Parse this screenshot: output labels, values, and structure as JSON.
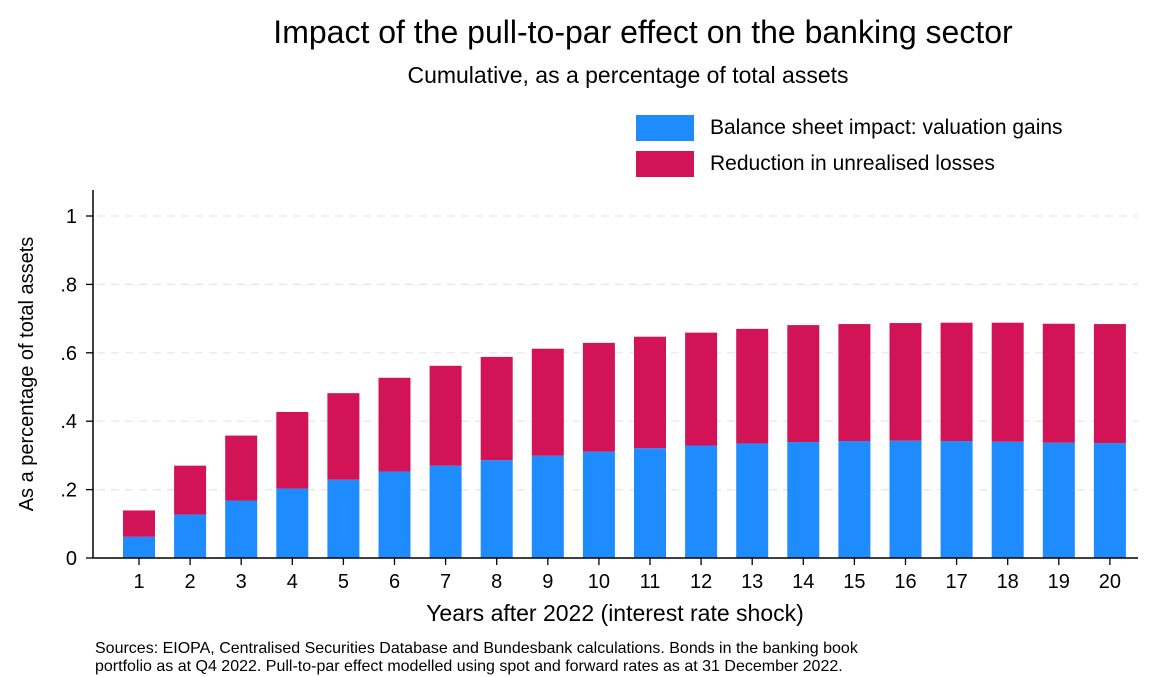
{
  "colors": {
    "valuation_gains": "#1E8CFF",
    "unrealised_losses": "#D21457",
    "gridline": "#E6E6E6",
    "axis": "#000000"
  },
  "footnote": {
    "line1": "Sources: EIOPA, Centralised Securities Database and Bundesbank calculations. Bonds in the banking book",
    "line2": "portfolio as at Q4 2022. Pull-to-par effect modelled using spot and forward rates as at 31 December 2022."
  },
  "chart_data": {
    "type": "bar",
    "stacked": true,
    "title": "Impact of the pull-to-par effect on the banking sector",
    "subtitle": "Cumulative, as a percentage of total assets",
    "xlabel": "Years after 2022 (interest rate shock)",
    "ylabel": "As a percentage of total assets",
    "ylim": [
      0,
      1.07
    ],
    "yticks": [
      0,
      0.2,
      0.4,
      0.6,
      0.8,
      1
    ],
    "ytick_labels": [
      "0",
      ".2",
      ".4",
      ".6",
      ".8",
      "1"
    ],
    "grid": true,
    "legend_position": "top-right",
    "categories": [
      "1",
      "2",
      "3",
      "4",
      "5",
      "6",
      "7",
      "8",
      "9",
      "10",
      "11",
      "12",
      "13",
      "14",
      "15",
      "16",
      "17",
      "18",
      "19",
      "20"
    ],
    "series": [
      {
        "name": "Balance sheet impact: valuation gains",
        "values": [
          0.062,
          0.127,
          0.168,
          0.203,
          0.229,
          0.253,
          0.27,
          0.286,
          0.299,
          0.311,
          0.321,
          0.329,
          0.335,
          0.339,
          0.342,
          0.343,
          0.342,
          0.34,
          0.337,
          0.336
        ]
      },
      {
        "name": "Reduction in unrealised losses",
        "values": [
          0.077,
          0.143,
          0.19,
          0.224,
          0.253,
          0.274,
          0.292,
          0.302,
          0.313,
          0.318,
          0.326,
          0.33,
          0.335,
          0.342,
          0.342,
          0.344,
          0.346,
          0.348,
          0.348,
          0.348
        ]
      }
    ]
  }
}
